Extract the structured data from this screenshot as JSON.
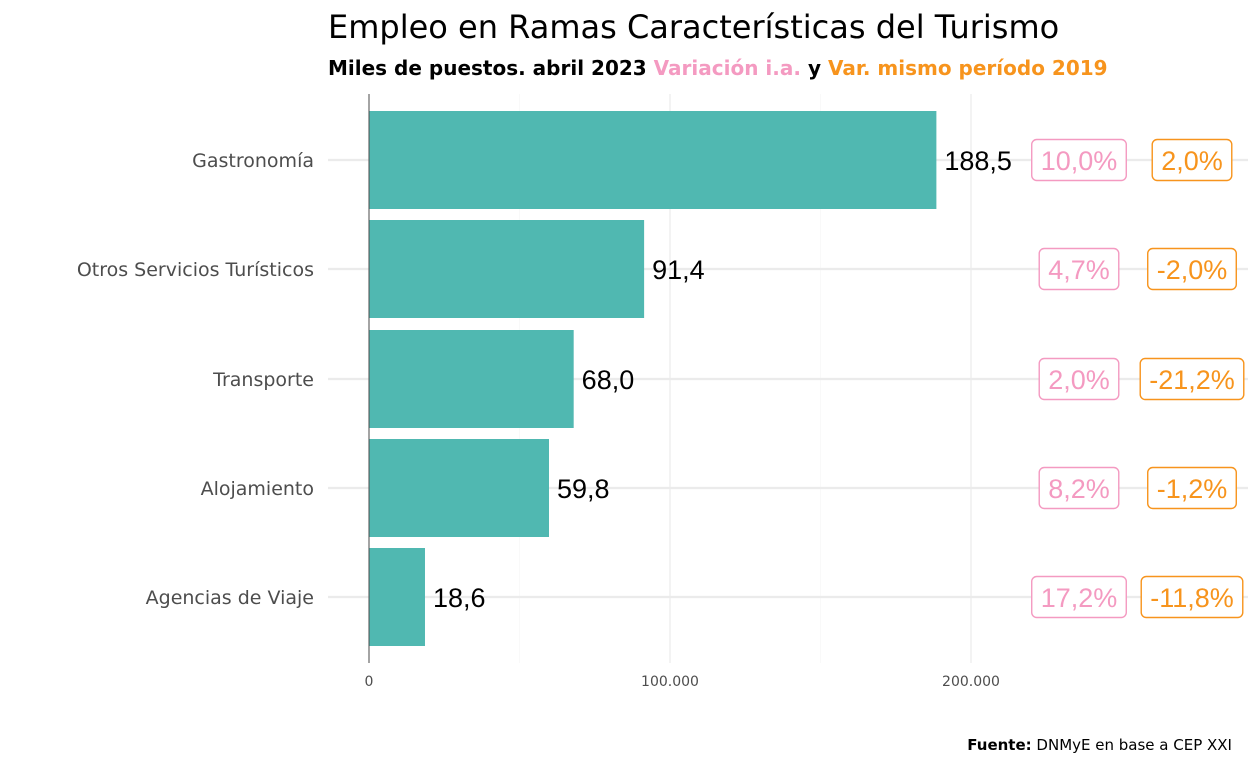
{
  "colors": {
    "bar": "#50b8b1",
    "yoy": "#f49ac1",
    "vs2019": "#f7941d",
    "grid": "#ebebeb",
    "axis": "#4d4d4d"
  },
  "chart_data": {
    "type": "bar",
    "orientation": "horizontal",
    "title": "Empleo en Ramas Características del Turismo",
    "subtitle": {
      "main": "Miles de puestos. abril 2023",
      "yoy_label": "Variación i.a.",
      "joiner": "y",
      "vs2019_label": "Var. mismo período 2019"
    },
    "categories": [
      "Gastronomía",
      "Otros Servicios Turísticos",
      "Transporte",
      "Alojamiento",
      "Agencias de Viaje"
    ],
    "values": [
      188500,
      91400,
      68000,
      59800,
      18600
    ],
    "value_labels": [
      "188,5",
      "91,4",
      "68,0",
      "59,8",
      "18,6"
    ],
    "yoy_change": [
      "10,0%",
      "4,7%",
      "2,0%",
      "8,2%",
      "17,2%"
    ],
    "vs2019_change": [
      "2,0%",
      "-2,0%",
      "-21,2%",
      "-1,2%",
      "-11,8%"
    ],
    "x_ticks": [
      0,
      100000,
      200000
    ],
    "x_tick_labels": [
      "0",
      "100.000",
      "200.000"
    ],
    "xlim": [
      0,
      290000
    ],
    "grid": true
  },
  "caption": {
    "bold": "Fuente:",
    "text": "DNMyE en base a CEP XXI"
  }
}
